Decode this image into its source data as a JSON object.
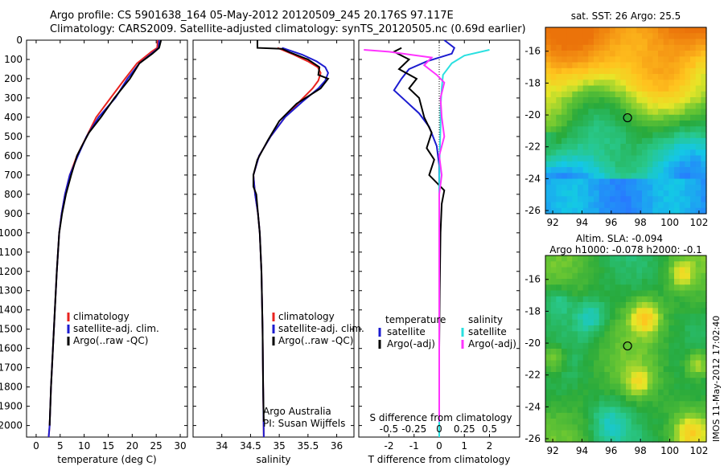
{
  "header": {
    "line1": "Argo profile: CS 5901638_164 05-May-2012 20120509_245 20.176S 97.117E",
    "line2": "Climatology: CARS2009. Satellite-adjusted climatology: synTS_20120505.nc (0.69d earlier)"
  },
  "stamp": "IMOS 11-May-2012 17:02:40",
  "depth_ticks": [
    "0",
    "100",
    "200",
    "300",
    "400",
    "500",
    "600",
    "700",
    "800",
    "900",
    "1000",
    "1100",
    "1200",
    "1300",
    "1400",
    "1500",
    "1600",
    "1700",
    "1800",
    "1900",
    "2000"
  ],
  "colors": {
    "climatology": "#e8231f",
    "satellite": "#1c1cd0",
    "argo": "#000000",
    "sat_s": "#2ae0e0",
    "argo_adj_s": "#ff33ff"
  },
  "chart_data": [
    {
      "id": "temperature",
      "type": "line",
      "xlabel": "temperature (deg C)",
      "x_ticks": [
        "0",
        "5",
        "10",
        "15",
        "20",
        "25",
        "30"
      ],
      "xlim": [
        -2,
        31.5
      ],
      "ylim": [
        0,
        2060
      ],
      "legend": [
        "climatology",
        "satellite-adj. clim.",
        "Argo(..raw -QC)"
      ],
      "series": [
        {
          "name": "climatology",
          "points": [
            [
              25.3,
              0
            ],
            [
              25.2,
              40
            ],
            [
              24,
              60
            ],
            [
              21,
              120
            ],
            [
              18.5,
              200
            ],
            [
              15.5,
              300
            ],
            [
              12.5,
              400
            ],
            [
              10.5,
              500
            ],
            [
              8.5,
              600
            ],
            [
              7,
              700
            ],
            [
              6,
              800
            ],
            [
              5.3,
              900
            ],
            [
              4.8,
              1000
            ],
            [
              4.3,
              1200
            ],
            [
              3.9,
              1400
            ],
            [
              3.5,
              1600
            ],
            [
              3.1,
              1800
            ],
            [
              2.8,
              2000
            ],
            [
              2.6,
              2060
            ]
          ]
        },
        {
          "name": "satellite-adj. clim.",
          "points": [
            [
              25.6,
              0
            ],
            [
              25.5,
              40
            ],
            [
              24.5,
              60
            ],
            [
              21.5,
              120
            ],
            [
              19,
              200
            ],
            [
              16.5,
              300
            ],
            [
              13,
              400
            ],
            [
              10.5,
              500
            ],
            [
              8.7,
              600
            ],
            [
              7,
              700
            ],
            [
              6,
              800
            ],
            [
              5.3,
              900
            ],
            [
              4.8,
              1000
            ],
            [
              4.3,
              1200
            ],
            [
              3.9,
              1400
            ],
            [
              3.5,
              1600
            ],
            [
              3.1,
              1800
            ],
            [
              2.8,
              2000
            ],
            [
              2.6,
              2060
            ]
          ]
        },
        {
          "name": "Argo(..raw -QC)",
          "points": [
            [
              26,
              0
            ],
            [
              25.6,
              40
            ],
            [
              24.2,
              70
            ],
            [
              21.5,
              120
            ],
            [
              19.5,
              200
            ],
            [
              16.3,
              300
            ],
            [
              13.5,
              400
            ],
            [
              11,
              480
            ],
            [
              9.5,
              550
            ],
            [
              8.5,
              600
            ],
            [
              7.3,
              700
            ],
            [
              6.2,
              800
            ],
            [
              5.4,
              900
            ],
            [
              4.8,
              1000
            ],
            [
              4.3,
              1200
            ],
            [
              3.9,
              1400
            ],
            [
              3.5,
              1600
            ],
            [
              3.1,
              1800
            ],
            [
              2.8,
              2000
            ]
          ]
        }
      ]
    },
    {
      "id": "salinity",
      "type": "line",
      "xlabel": "salinity",
      "x_ticks": [
        "34",
        "34.5",
        "35",
        "35.5",
        "36"
      ],
      "xlim": [
        33.5,
        36.3
      ],
      "ylim": [
        0,
        2060
      ],
      "legend": [
        "climatology",
        "satellite-adj. clim.",
        "Argo(..raw -QC)"
      ],
      "annotation": [
        "Argo Australia",
        "PI: Susan Wijffels"
      ],
      "series": [
        {
          "name": "climatology",
          "points": [
            [
              34.97,
              40
            ],
            [
              35.25,
              75
            ],
            [
              35.5,
              110
            ],
            [
              35.67,
              140
            ],
            [
              35.72,
              170
            ],
            [
              35.68,
              210
            ],
            [
              35.58,
              250
            ],
            [
              35.35,
              320
            ],
            [
              35.1,
              400
            ],
            [
              34.85,
              500
            ],
            [
              34.65,
              600
            ],
            [
              34.55,
              700
            ],
            [
              34.58,
              800
            ],
            [
              34.63,
              900
            ],
            [
              34.66,
              1000
            ],
            [
              34.69,
              1200
            ],
            [
              34.71,
              1500
            ],
            [
              34.72,
              1800
            ],
            [
              34.73,
              2060
            ]
          ]
        },
        {
          "name": "satellite-adj. clim.",
          "points": [
            [
              35.05,
              40
            ],
            [
              35.4,
              75
            ],
            [
              35.65,
              110
            ],
            [
              35.8,
              140
            ],
            [
              35.85,
              170
            ],
            [
              35.8,
              210
            ],
            [
              35.68,
              250
            ],
            [
              35.4,
              320
            ],
            [
              35.1,
              400
            ],
            [
              34.85,
              500
            ],
            [
              34.65,
              600
            ],
            [
              34.55,
              700
            ],
            [
              34.58,
              800
            ],
            [
              34.63,
              900
            ],
            [
              34.66,
              1000
            ],
            [
              34.69,
              1200
            ],
            [
              34.71,
              1500
            ],
            [
              34.72,
              1800
            ],
            [
              34.73,
              2060
            ]
          ]
        },
        {
          "name": "Argo(..raw -QC)",
          "points": [
            [
              34.62,
              0
            ],
            [
              34.62,
              40
            ],
            [
              35.05,
              45
            ],
            [
              35.2,
              65
            ],
            [
              35.5,
              100
            ],
            [
              35.7,
              140
            ],
            [
              35.68,
              180
            ],
            [
              35.85,
              200
            ],
            [
              35.72,
              250
            ],
            [
              35.3,
              330
            ],
            [
              35.0,
              420
            ],
            [
              34.8,
              520
            ],
            [
              34.62,
              620
            ],
            [
              34.55,
              700
            ],
            [
              34.55,
              760
            ],
            [
              34.6,
              800
            ],
            [
              34.63,
              900
            ],
            [
              34.66,
              1000
            ],
            [
              34.69,
              1200
            ],
            [
              34.71,
              1500
            ],
            [
              34.72,
              1800
            ],
            [
              34.73,
              1980
            ]
          ]
        }
      ]
    },
    {
      "id": "difference",
      "type": "line",
      "xlabel": "T difference from climatology",
      "x_ticks": [
        "-2",
        "-1",
        "0",
        "1",
        "2"
      ],
      "xlim": [
        -3.2,
        3.2
      ],
      "top_label": "S difference from climatology",
      "top_ticks": [
        "-0.5",
        "-0.25",
        "0",
        "0.25",
        "0.5"
      ],
      "ylim": [
        0,
        2060
      ],
      "legend_left_title": "temperature",
      "legend_right_title": "salinity",
      "legend_left": [
        "satellite",
        "Argo(-adj)"
      ],
      "legend_right": [
        "satellite",
        "Argo(-adj)"
      ],
      "series": [
        {
          "name": "temperature satellite",
          "points": [
            [
              0.2,
              0
            ],
            [
              0.6,
              40
            ],
            [
              0.5,
              70
            ],
            [
              -0.5,
              110
            ],
            [
              -1.2,
              150
            ],
            [
              -1.5,
              200
            ],
            [
              -1.8,
              260
            ],
            [
              -1.3,
              320
            ],
            [
              -0.8,
              380
            ],
            [
              -0.4,
              450
            ],
            [
              -0.1,
              550
            ],
            [
              0,
              650
            ],
            [
              0,
              800
            ],
            [
              0,
              2060
            ]
          ]
        },
        {
          "name": "temperature Argo(-adj)",
          "points": [
            [
              -1.5,
              40
            ],
            [
              -1.8,
              60
            ],
            [
              -1.2,
              100
            ],
            [
              -1.6,
              150
            ],
            [
              -0.9,
              200
            ],
            [
              -1.2,
              250
            ],
            [
              -0.8,
              300
            ],
            [
              -0.6,
              400
            ],
            [
              -0.3,
              480
            ],
            [
              -0.5,
              560
            ],
            [
              -0.2,
              620
            ],
            [
              -0.4,
              700
            ],
            [
              0.2,
              780
            ],
            [
              0.1,
              850
            ],
            [
              0.05,
              1000
            ],
            [
              0.02,
              1300
            ],
            [
              0,
              1600
            ],
            [
              0,
              1980
            ]
          ]
        },
        {
          "name": "salinity satellite",
          "points": [
            [
              2,
              50
            ],
            [
              1,
              80
            ],
            [
              0.5,
              120
            ],
            [
              0.15,
              180
            ],
            [
              0.1,
              250
            ],
            [
              0.05,
              350
            ],
            [
              0.05,
              450
            ],
            [
              0.02,
              600
            ],
            [
              0,
              800
            ],
            [
              0,
              2060
            ]
          ]
        },
        {
          "name": "salinity Argo(-adj)",
          "points": [
            [
              -3,
              50
            ],
            [
              -2,
              60
            ],
            [
              -0.3,
              90
            ],
            [
              -0.6,
              130
            ],
            [
              -0.1,
              180
            ],
            [
              0.2,
              220
            ],
            [
              0.05,
              300
            ],
            [
              0.1,
              400
            ],
            [
              0.2,
              500
            ],
            [
              0,
              600
            ],
            [
              0.1,
              700
            ],
            [
              0,
              800
            ],
            [
              0,
              1980
            ]
          ]
        }
      ]
    },
    {
      "id": "sst_map",
      "type": "heatmap",
      "title": "sat. SST: 26  Argo: 25.5",
      "x_ticks": [
        "92",
        "94",
        "96",
        "98",
        "100",
        "102"
      ],
      "y_ticks": [
        "-16",
        "-18",
        "-20",
        "-22",
        "-24",
        "-26"
      ],
      "xlim": [
        91.5,
        102.5
      ],
      "ylim": [
        -26.2,
        -14.5
      ],
      "marker": [
        97.117,
        -20.176
      ]
    },
    {
      "id": "sla_map",
      "type": "heatmap",
      "title": "Altim. SLA: -0.094",
      "subtitle": "Argo h1000: -0.078  h2000: -0.1",
      "x_ticks": [
        "92",
        "94",
        "96",
        "98",
        "100",
        "102"
      ],
      "y_ticks": [
        "-16",
        "-18",
        "-20",
        "-22",
        "-24",
        "-26"
      ],
      "xlim": [
        91.5,
        102.5
      ],
      "ylim": [
        -26.2,
        -14.5
      ],
      "marker": [
        97.117,
        -20.176
      ]
    }
  ]
}
